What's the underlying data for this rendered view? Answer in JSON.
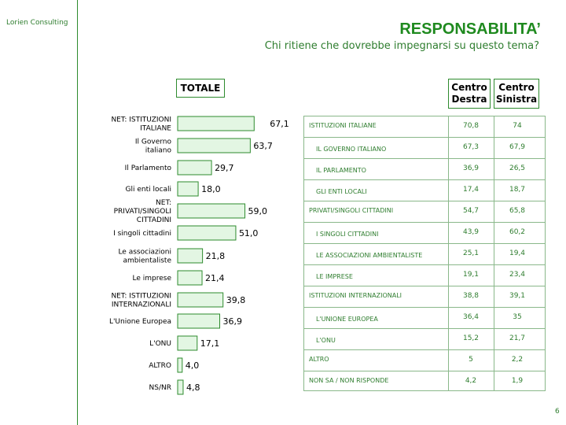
{
  "header": {
    "brand": "Lorien Consulting",
    "title": "RESPONSABILITA’",
    "subtitle": "Chi ritiene che dovrebbe impegnarsi su questo tema?",
    "page_number": "6"
  },
  "colors": {
    "accent": "#1f8a1f",
    "bar_fill": "#e3f6e3",
    "bar_border": "#2e8b2e"
  },
  "chart_data": {
    "type": "bar",
    "orientation": "horizontal",
    "title": "TOTALE",
    "categories": [
      [
        "NET: ISTITUZIONI",
        "ITALIANE"
      ],
      [
        "Il Governo",
        "italiano"
      ],
      [
        "Il Parlamento"
      ],
      [
        "Gli enti locali"
      ],
      [
        "NET:",
        "PRIVATI/SINGOLI",
        "CITTADINI"
      ],
      [
        "I singoli cittadini"
      ],
      [
        "Le associazioni",
        "ambientaliste"
      ],
      [
        "Le imprese"
      ],
      [
        "NET: ISTITUZIONI",
        "INTERNAZIONALI"
      ],
      [
        "L'Unione Europea"
      ],
      [
        "L'ONU"
      ],
      [
        "ALTRO"
      ],
      [
        "NS/NR"
      ]
    ],
    "values": [
      67.1,
      63.7,
      29.7,
      18.0,
      59.0,
      51.0,
      21.8,
      21.4,
      39.8,
      36.9,
      17.1,
      4.0,
      4.8
    ],
    "value_labels": [
      "67,1",
      "63,7",
      "29,7",
      "18,0",
      "59,0",
      "51,0",
      "21,8",
      "21,4",
      "39,8",
      "36,9",
      "17,1",
      "4,0",
      "4,8"
    ]
  },
  "table": {
    "columns": [
      [
        "Centro",
        "Destra"
      ],
      [
        "Centro",
        "Sinistra"
      ]
    ],
    "rows": [
      {
        "label": "ISTITUZIONI ITALIANE",
        "indent": false,
        "cd": "70,8",
        "cs": "74"
      },
      {
        "label": "IL GOVERNO ITALIANO",
        "indent": true,
        "cd": "67,3",
        "cs": "67,9"
      },
      {
        "label": "IL PARLAMENTO",
        "indent": true,
        "cd": "36,9",
        "cs": "26,5"
      },
      {
        "label": "GLI ENTI LOCALI",
        "indent": true,
        "cd": "17,4",
        "cs": "18,7"
      },
      {
        "label": "PRIVATI/SINGOLI CITTADINI",
        "indent": false,
        "cd": "54,7",
        "cs": "65,8"
      },
      {
        "label": "I SINGOLI CITTADINI",
        "indent": true,
        "cd": "43,9",
        "cs": "60,2"
      },
      {
        "label": "LE ASSOCIAZIONI AMBIENTALISTE",
        "indent": true,
        "cd": "25,1",
        "cs": "19,4"
      },
      {
        "label": "LE IMPRESE",
        "indent": true,
        "cd": "19,1",
        "cs": "23,4"
      },
      {
        "label": "ISTITUZIONI INTERNAZIONALI",
        "indent": false,
        "cd": "38,8",
        "cs": "39,1"
      },
      {
        "label": "L'UNIONE EUROPEA",
        "indent": true,
        "cd": "36,4",
        "cs": "35"
      },
      {
        "label": "L'ONU",
        "indent": true,
        "cd": "15,2",
        "cs": "21,7"
      },
      {
        "label": "ALTRO",
        "indent": false,
        "cd": "5",
        "cs": "2,2"
      },
      {
        "label": "NON SA / NON RISPONDE",
        "indent": false,
        "cd": "4,2",
        "cs": "1,9"
      }
    ]
  }
}
